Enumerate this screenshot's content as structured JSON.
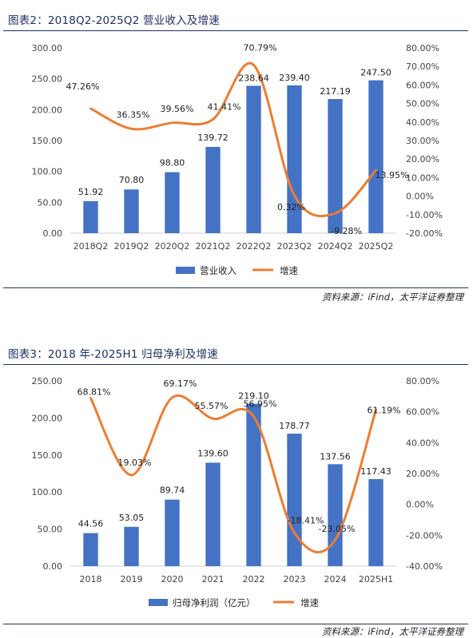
{
  "figures": [
    {
      "title": "图表2：2018Q2-2025Q2 营业收入及增速",
      "source": "资料来源：iFind，太平洋证券整理",
      "chart_data": {
        "type": "bar",
        "categories": [
          "2018Q2",
          "2019Q2",
          "2020Q2",
          "2021Q2",
          "2022Q2",
          "2023Q2",
          "2024Q2",
          "2025Q2"
        ],
        "series": [
          {
            "name": "营业收入",
            "kind": "bar",
            "axis": "left",
            "values": [
              51.92,
              70.8,
              98.8,
              139.72,
              238.64,
              239.4,
              217.19,
              247.5
            ],
            "labels": [
              "51.92",
              "70.80",
              "98.80",
              "139.72",
              "238.64",
              "239.40",
              "217.19",
              "247.50"
            ]
          },
          {
            "name": "增速",
            "kind": "line",
            "axis": "right",
            "values": [
              47.26,
              36.35,
              39.56,
              41.41,
              70.79,
              0.32,
              -9.28,
              13.95
            ],
            "labels": [
              "47.26%",
              "36.35%",
              "39.56%",
              "41.41%",
              "70.79%",
              "0.32%",
              "-9.28%",
              "13.95%"
            ]
          }
        ],
        "y_left": {
          "ticks": [
            "0.00",
            "50.00",
            "100.00",
            "150.00",
            "200.00",
            "250.00",
            "300.00"
          ],
          "min": 0,
          "max": 300
        },
        "y_right": {
          "ticks": [
            "-20.00%",
            "-10.00%",
            "0.00%",
            "10.00%",
            "20.00%",
            "30.00%",
            "40.00%",
            "50.00%",
            "60.00%",
            "70.00%",
            "80.00%"
          ],
          "min": -20,
          "max": 80
        },
        "legend": "bottom",
        "colors": {
          "bar": "#4472C4",
          "line": "#ED7D31"
        }
      }
    },
    {
      "title": "图表3：2018 年-2025H1 归母净利及增速",
      "source": "资料来源：iFind，太平洋证券整理",
      "chart_data": {
        "type": "bar",
        "categories": [
          "2018",
          "2019",
          "2020",
          "2021",
          "2022",
          "2023",
          "2024",
          "2025H1"
        ],
        "series": [
          {
            "name": "归母净利润（亿元）",
            "kind": "bar",
            "axis": "left",
            "values": [
              44.56,
              53.05,
              89.74,
              139.6,
              219.1,
              178.77,
              137.56,
              117.43
            ],
            "labels": [
              "44.56",
              "53.05",
              "89.74",
              "139.60",
              "219.10",
              "178.77",
              "137.56",
              "117.43"
            ]
          },
          {
            "name": "增速",
            "kind": "line",
            "axis": "right",
            "values": [
              68.81,
              19.03,
              69.17,
              55.57,
              56.95,
              -18.41,
              -23.05,
              61.19
            ],
            "labels": [
              "68.81%",
              "19.03%",
              "69.17%",
              "55.57%",
              "56.95%",
              "-18.41%",
              "-23.05%",
              "61.19%"
            ]
          }
        ],
        "y_left": {
          "ticks": [
            "0.00",
            "50.00",
            "100.00",
            "150.00",
            "200.00",
            "250.00"
          ],
          "min": 0,
          "max": 250
        },
        "y_right": {
          "ticks": [
            "-40.00%",
            "-20.00%",
            "0.00%",
            "20.00%",
            "40.00%",
            "60.00%",
            "80.00%"
          ],
          "min": -40,
          "max": 80
        },
        "legend": "bottom",
        "colors": {
          "bar": "#4472C4",
          "line": "#ED7D31"
        }
      }
    }
  ]
}
